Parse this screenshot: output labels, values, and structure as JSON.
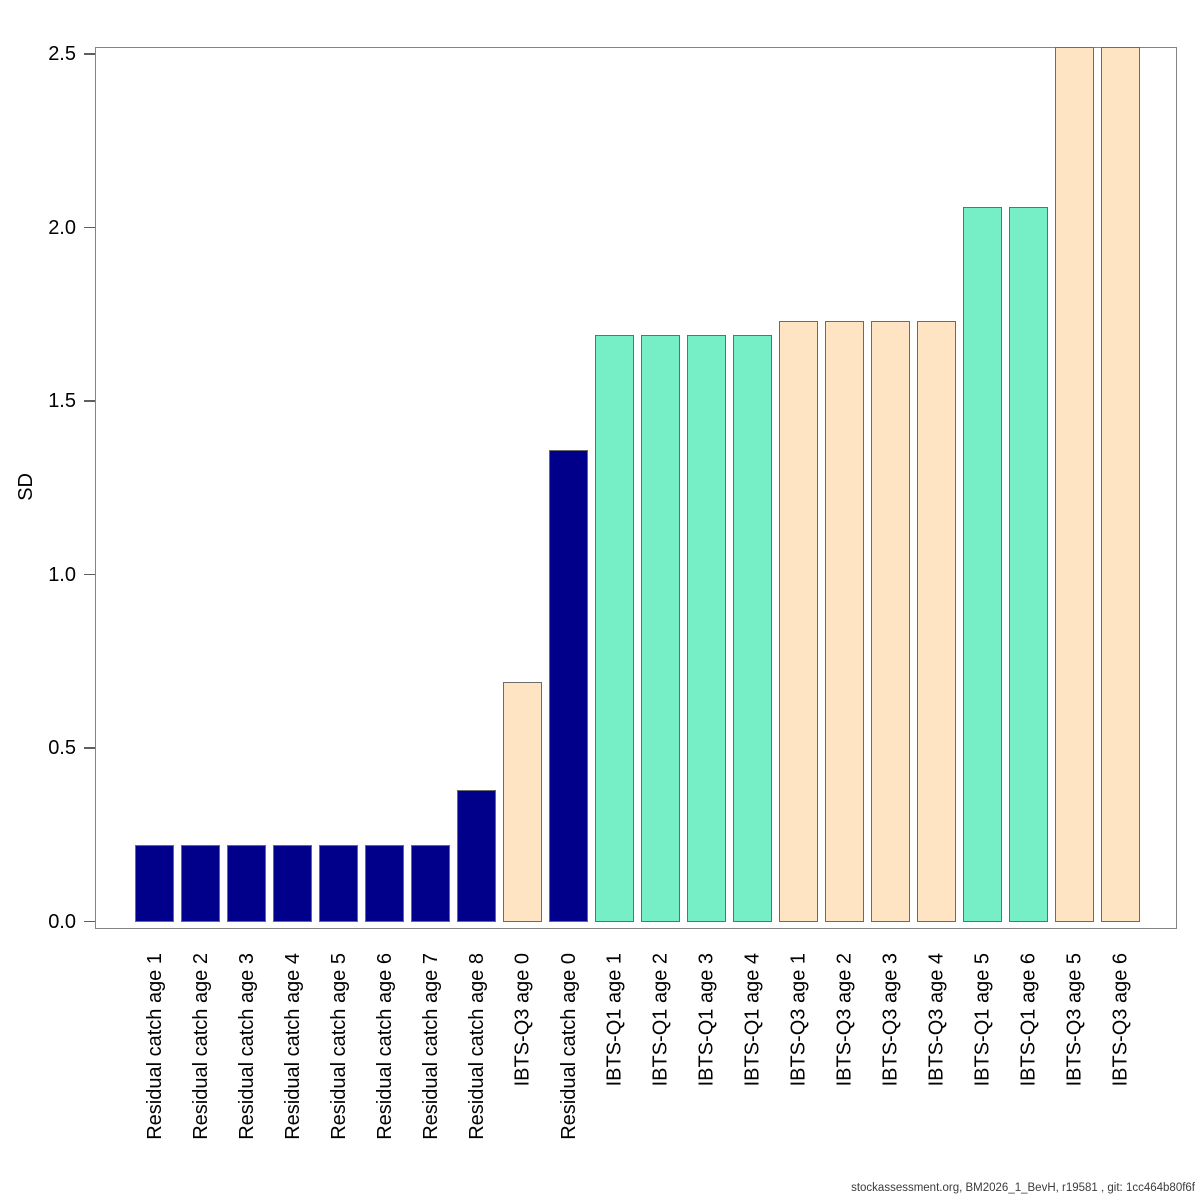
{
  "chart_data": {
    "type": "bar",
    "title": "",
    "xlabel": "",
    "ylabel": "SD",
    "ylim": [
      0,
      2.53
    ],
    "grid": false,
    "legend": "none",
    "categories": [
      "Residual catch age 1",
      "Residual catch age 2",
      "Residual catch age 3",
      "Residual catch age 4",
      "Residual catch age 5",
      "Residual catch age 6",
      "Residual catch age 7",
      "Residual catch age 8",
      "IBTS-Q3 age 0",
      "Residual catch age 0",
      "IBTS-Q1 age 1",
      "IBTS-Q1 age 2",
      "IBTS-Q1 age 3",
      "IBTS-Q1 age 4",
      "IBTS-Q3 age 1",
      "IBTS-Q3 age 2",
      "IBTS-Q3 age 3",
      "IBTS-Q3 age 4",
      "IBTS-Q1 age 5",
      "IBTS-Q1 age 6",
      "IBTS-Q3 age 5",
      "IBTS-Q3 age 6"
    ],
    "values": [
      0.22,
      0.22,
      0.22,
      0.22,
      0.22,
      0.22,
      0.22,
      0.38,
      0.69,
      1.36,
      1.69,
      1.69,
      1.69,
      1.69,
      1.73,
      1.73,
      1.73,
      1.73,
      2.06,
      2.06,
      2.52,
      2.52
    ],
    "groups": [
      "residual-catch",
      "residual-catch",
      "residual-catch",
      "residual-catch",
      "residual-catch",
      "residual-catch",
      "residual-catch",
      "residual-catch",
      "ibts-q3",
      "residual-catch",
      "ibts-q1",
      "ibts-q1",
      "ibts-q1",
      "ibts-q1",
      "ibts-q3",
      "ibts-q3",
      "ibts-q3",
      "ibts-q3",
      "ibts-q1",
      "ibts-q1",
      "ibts-q3",
      "ibts-q3"
    ],
    "group_colors": {
      "residual-catch": "#00008B",
      "ibts-q1": "#76EEC6",
      "ibts-q3": "#FFE4C4"
    },
    "yticks": {
      "labels": [
        "0.0",
        "0.5",
        "1.0",
        "1.5",
        "2.0",
        "2.5"
      ],
      "values": [
        0,
        0.5,
        1.0,
        1.5,
        2.0,
        2.5
      ]
    }
  },
  "footer": {
    "text": "stockassessment.org, BM2026_1_BevH, r19581 , git: 1cc464b80f6f"
  }
}
